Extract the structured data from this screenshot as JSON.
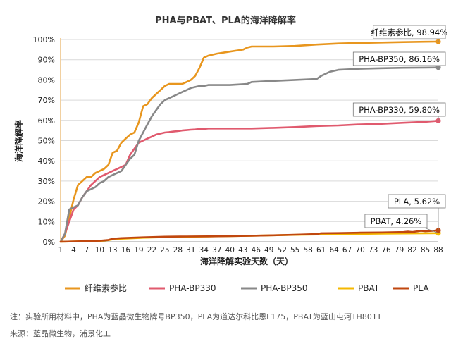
{
  "chart_data": {
    "type": "line",
    "title": "PHA与PBAT、PLA的海洋降解率",
    "xlabel": "海洋降解实验天数（天）",
    "ylabel": "海洋降解率",
    "xlim": [
      1,
      88
    ],
    "ylim": [
      0,
      100
    ],
    "x_ticks": [
      1,
      4,
      7,
      10,
      13,
      16,
      19,
      22,
      25,
      28,
      31,
      34,
      37,
      40,
      43,
      46,
      49,
      52,
      55,
      58,
      61,
      64,
      67,
      70,
      73,
      76,
      79,
      82,
      85,
      88
    ],
    "y_ticks": [
      0,
      10,
      20,
      30,
      40,
      50,
      60,
      70,
      80,
      90,
      100
    ],
    "y_tick_labels": [
      "0%",
      "10%",
      "20%",
      "30%",
      "40%",
      "50%",
      "60%",
      "70%",
      "80%",
      "90%",
      "100%"
    ],
    "grid": "horizontal",
    "legend_position": "bottom",
    "series": [
      {
        "name": "纤维素参比",
        "color": "#E8961E",
        "end_label": "纤维素参比, 98.94%",
        "x": [
          1,
          2,
          3,
          4,
          5,
          6,
          7,
          8,
          9,
          10,
          11,
          12,
          13,
          14,
          15,
          16,
          17,
          18,
          19,
          20,
          21,
          22,
          23,
          24,
          25,
          26,
          27,
          28,
          29,
          30,
          31,
          32,
          33,
          34,
          35,
          37,
          40,
          43,
          44,
          45,
          50,
          55,
          60,
          65,
          70,
          75,
          80,
          85,
          88
        ],
        "y": [
          0,
          3,
          12,
          21,
          28,
          30,
          32,
          32,
          34,
          35,
          36,
          38,
          44,
          45,
          49,
          51,
          53,
          54,
          59,
          67,
          68,
          71,
          73,
          75,
          77,
          78,
          78,
          78,
          78,
          79,
          80,
          82,
          86,
          91,
          92,
          93,
          94,
          95,
          96,
          96.5,
          96.5,
          96.8,
          97.5,
          98,
          98.3,
          98.5,
          98.7,
          98.9,
          98.94
        ]
      },
      {
        "name": "PHA-BP330",
        "color": "#E05A6E",
        "end_label": "PHA-BP330, 59.80%",
        "x": [
          1,
          2,
          3,
          4,
          5,
          6,
          7,
          8,
          9,
          10,
          11,
          12,
          13,
          14,
          15,
          16,
          17,
          18,
          19,
          20,
          21,
          22,
          23,
          24,
          25,
          26,
          27,
          28,
          29,
          30,
          31,
          32,
          33,
          34,
          35,
          40,
          45,
          50,
          55,
          60,
          65,
          70,
          75,
          80,
          85,
          88
        ],
        "y": [
          0,
          4,
          10,
          16,
          18,
          22,
          25,
          28,
          30,
          32,
          33,
          34,
          35,
          36,
          37,
          38,
          43,
          46,
          49,
          50,
          51,
          52,
          53,
          53.5,
          54,
          54.2,
          54.5,
          54.7,
          55,
          55.2,
          55.4,
          55.5,
          55.7,
          55.8,
          56,
          56,
          56,
          56.3,
          56.7,
          57.2,
          57.5,
          58,
          58.3,
          58.8,
          59.3,
          59.8
        ]
      },
      {
        "name": "PHA-BP350",
        "color": "#888888",
        "end_label": "PHA-BP350, 86.16%",
        "x": [
          1,
          2,
          3,
          4,
          5,
          6,
          7,
          8,
          9,
          10,
          11,
          12,
          13,
          14,
          15,
          16,
          17,
          18,
          19,
          20,
          21,
          22,
          23,
          24,
          25,
          26,
          27,
          28,
          29,
          30,
          31,
          32,
          33,
          34,
          35,
          40,
          44,
          45,
          50,
          55,
          60,
          61,
          62,
          63,
          65,
          70,
          75,
          80,
          85,
          88
        ],
        "y": [
          0,
          4,
          16,
          17,
          18,
          22,
          25,
          26,
          27,
          29,
          30,
          32,
          33,
          34,
          35,
          38,
          41,
          43,
          50,
          54,
          58,
          62,
          65,
          68,
          70,
          71,
          72,
          73,
          74,
          75,
          76,
          76.5,
          77,
          77,
          77.5,
          77.5,
          78,
          79,
          79.5,
          80,
          80.5,
          82,
          83,
          84,
          85,
          85.5,
          85.8,
          86,
          86.1,
          86.16
        ]
      },
      {
        "name": "PBAT",
        "color": "#F5B800",
        "end_label": "PBAT, 4.26%",
        "x": [
          1,
          5,
          10,
          12,
          13,
          15,
          20,
          25,
          30,
          35,
          40,
          45,
          50,
          55,
          60,
          65,
          70,
          75,
          80,
          85,
          88
        ],
        "y": [
          0,
          0.2,
          0.4,
          0.8,
          1.2,
          1.5,
          2,
          2.3,
          2.5,
          2.6,
          2.8,
          3,
          3.2,
          3.4,
          3.6,
          3.8,
          3.9,
          4,
          4.1,
          4.2,
          4.26
        ]
      },
      {
        "name": "PLA",
        "color": "#C0470F",
        "end_label": "PLA, 5.62%",
        "x": [
          1,
          5,
          10,
          12,
          13,
          15,
          20,
          25,
          30,
          35,
          40,
          45,
          50,
          55,
          60,
          61,
          65,
          70,
          75,
          80,
          81,
          82,
          84,
          85,
          88
        ],
        "y": [
          0,
          0.2,
          0.5,
          0.9,
          1.5,
          1.8,
          2.2,
          2.5,
          2.6,
          2.7,
          2.8,
          3,
          3.2,
          3.5,
          3.8,
          4.2,
          4.3,
          4.5,
          4.6,
          4.8,
          5,
          4.8,
          5.4,
          5.2,
          5.62
        ]
      }
    ]
  },
  "footnote": "注：实验所用材料中，PHA为蓝晶微生物牌号BP350，PLA为道达尔科比恩L175，PBAT为蓝山屯河TH801T",
  "source": "来源：蓝晶微生物，浦景化工"
}
